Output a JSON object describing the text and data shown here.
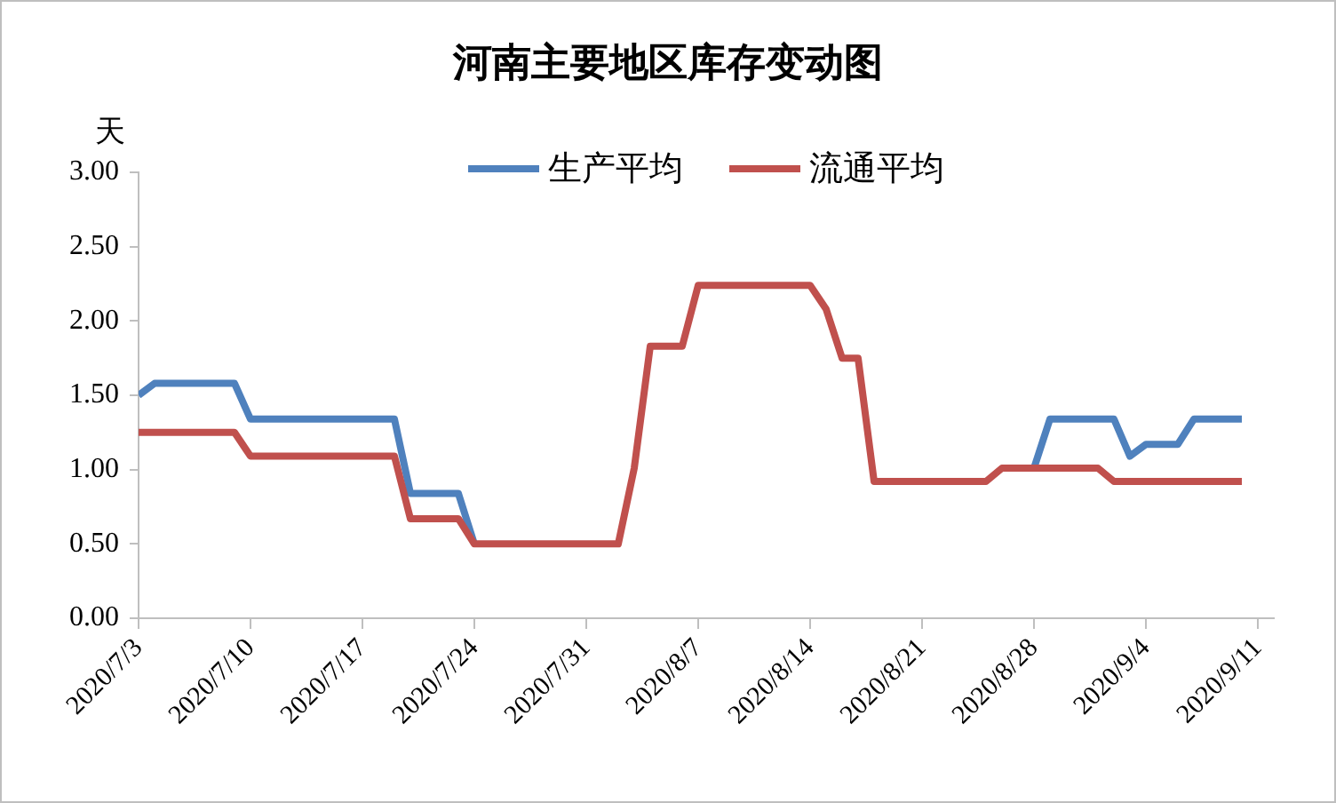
{
  "chart_data": {
    "type": "line",
    "title": "河南主要地区库存变动图",
    "ylabel": "天",
    "xlim": [
      "2020-07-03",
      "2020-09-12"
    ],
    "xticks": [
      {
        "value": "2020-07-03",
        "label": "2020/7/3"
      },
      {
        "value": "2020-07-10",
        "label": "2020/7/10"
      },
      {
        "value": "2020-07-17",
        "label": "2020/7/17"
      },
      {
        "value": "2020-07-24",
        "label": "2020/7/24"
      },
      {
        "value": "2020-07-31",
        "label": "2020/7/31"
      },
      {
        "value": "2020-08-07",
        "label": "2020/8/7"
      },
      {
        "value": "2020-08-14",
        "label": "2020/8/14"
      },
      {
        "value": "2020-08-21",
        "label": "2020/8/21"
      },
      {
        "value": "2020-08-28",
        "label": "2020/8/28"
      },
      {
        "value": "2020-09-04",
        "label": "2020/9/4"
      },
      {
        "value": "2020-09-11",
        "label": "2020/9/11"
      }
    ],
    "ylim": [
      0,
      3
    ],
    "yticks": [
      {
        "value": 0,
        "label": "0.00"
      },
      {
        "value": 0.5,
        "label": "0.50"
      },
      {
        "value": 1,
        "label": "1.00"
      },
      {
        "value": 1.5,
        "label": "1.50"
      },
      {
        "value": 2,
        "label": "2.00"
      },
      {
        "value": 2.5,
        "label": "2.50"
      },
      {
        "value": 3,
        "label": "3.00"
      }
    ],
    "legend": "top",
    "series": [
      {
        "name": "生产平均",
        "color": "#4f81bd",
        "x": [
          "2020-07-03",
          "2020-07-04",
          "2020-07-09",
          "2020-07-10",
          "2020-07-19",
          "2020-07-20",
          "2020-07-23",
          "2020-07-24",
          "2020-08-01",
          "2020-08-28",
          "2020-08-29",
          "2020-09-02",
          "2020-09-03",
          "2020-09-04",
          "2020-09-06",
          "2020-09-07",
          "2020-09-10"
        ],
        "values": [
          1.5,
          1.58,
          1.58,
          1.34,
          1.34,
          0.84,
          0.84,
          0.5,
          null,
          1.01,
          1.34,
          1.34,
          1.09,
          1.17,
          1.17,
          1.34,
          1.34
        ]
      },
      {
        "name": "流通平均",
        "color": "#c0504d",
        "x": [
          "2020-07-03",
          "2020-07-09",
          "2020-07-10",
          "2020-07-19",
          "2020-07-20",
          "2020-07-23",
          "2020-07-24",
          "2020-08-02",
          "2020-08-03",
          "2020-08-04",
          "2020-08-06",
          "2020-08-07",
          "2020-08-14",
          "2020-08-15",
          "2020-08-16",
          "2020-08-17",
          "2020-08-18",
          "2020-08-25",
          "2020-08-26",
          "2020-09-01",
          "2020-09-02",
          "2020-09-10"
        ],
        "values": [
          1.25,
          1.25,
          1.09,
          1.09,
          0.67,
          0.67,
          0.5,
          0.5,
          1.01,
          1.83,
          1.83,
          2.24,
          2.24,
          2.08,
          1.75,
          1.75,
          0.92,
          0.92,
          1.01,
          1.01,
          0.92,
          0.92
        ]
      }
    ]
  }
}
